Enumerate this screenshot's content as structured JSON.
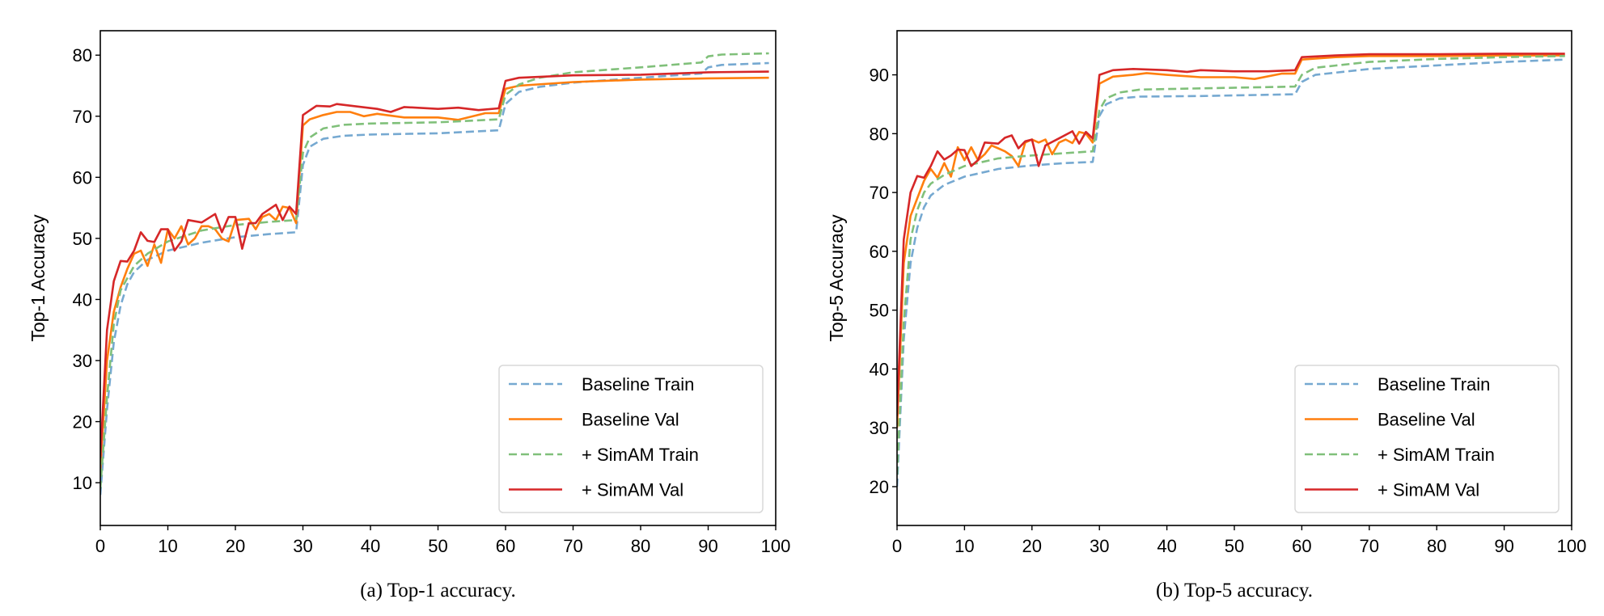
{
  "chart_data": [
    {
      "type": "line",
      "caption": "(a) Top-1 accuracy.",
      "xlabel": "",
      "ylabel": "Top-1 Accuracy",
      "xlim": [
        0,
        100
      ],
      "ylim": [
        3,
        84
      ],
      "xticks": [
        0,
        10,
        20,
        30,
        40,
        50,
        60,
        70,
        80,
        90,
        100
      ],
      "yticks": [
        10,
        20,
        30,
        40,
        50,
        60,
        70,
        80
      ],
      "grid": false,
      "legend_position": "lower-right",
      "series": [
        {
          "name": "Baseline Train",
          "color": "#76a9d1",
          "dashed": true,
          "x": [
            0,
            1,
            2,
            3,
            4,
            5,
            7,
            10,
            15,
            20,
            25,
            29,
            30,
            31,
            33,
            36,
            40,
            50,
            59,
            60,
            62,
            65,
            70,
            80,
            89,
            90,
            92,
            99
          ],
          "y": [
            8,
            22,
            33,
            39,
            42.5,
            44.5,
            46.5,
            48,
            49.3,
            50.2,
            50.7,
            51,
            62,
            65,
            66.3,
            66.8,
            67,
            67.2,
            67.7,
            72,
            74,
            74.8,
            75.5,
            76.3,
            77,
            78,
            78.4,
            78.7
          ]
        },
        {
          "name": "Baseline Val",
          "color": "#ff7f0e",
          "dashed": false,
          "x": [
            0,
            1,
            2,
            3,
            4,
            5,
            6,
            7,
            8,
            9,
            10,
            11,
            12,
            13,
            14,
            15,
            16,
            17,
            18,
            19,
            20,
            22,
            23,
            24,
            25,
            26,
            27,
            28,
            29,
            30,
            31,
            33,
            35,
            37,
            39,
            41,
            45,
            50,
            53,
            57,
            59,
            60,
            62,
            70,
            80,
            90,
            99
          ],
          "y": [
            12,
            30,
            38,
            42,
            45,
            47.5,
            48,
            45.5,
            49,
            46,
            51.5,
            50,
            52,
            49,
            50,
            52,
            52,
            51.5,
            50,
            49.5,
            53,
            53.2,
            51.5,
            53.5,
            54,
            53,
            55.2,
            55,
            52.5,
            68.5,
            69.5,
            70.2,
            70.7,
            70.7,
            70,
            70.4,
            69.8,
            69.8,
            69.4,
            70.5,
            70.5,
            74.5,
            75,
            75.6,
            76,
            76.2,
            76.3
          ]
        },
        {
          "name": "+ SimAM Train",
          "color": "#80c07a",
          "dashed": true,
          "x": [
            0,
            1,
            2,
            3,
            5,
            7,
            10,
            15,
            20,
            25,
            29,
            30,
            31,
            33,
            36,
            40,
            50,
            59,
            60,
            62,
            65,
            70,
            80,
            89,
            90,
            92,
            99
          ],
          "y": [
            9,
            24,
            36,
            41.5,
            45.5,
            47.5,
            49.5,
            51.3,
            52.2,
            52.7,
            53,
            64,
            66.5,
            68,
            68.6,
            68.8,
            69,
            69.5,
            73.5,
            75.2,
            76.3,
            77.2,
            78,
            78.8,
            79.8,
            80.1,
            80.3
          ]
        },
        {
          "name": "+ SimAM Val",
          "color": "#d62728",
          "dashed": false,
          "x": [
            0,
            1,
            2,
            3,
            4,
            5,
            6,
            7,
            8,
            9,
            10,
            11,
            12,
            13,
            15,
            17,
            18,
            19,
            20,
            21,
            22,
            23,
            24,
            26,
            27,
            28,
            29,
            30,
            32,
            34,
            35,
            38,
            41,
            43,
            45,
            50,
            53,
            56,
            59,
            60,
            62,
            70,
            80,
            90,
            99
          ],
          "y": [
            14,
            35,
            43,
            46.3,
            46.2,
            48,
            51,
            49.6,
            49.4,
            51.5,
            51.5,
            48,
            49.5,
            53,
            52.6,
            54,
            51,
            53.5,
            53.5,
            48.3,
            52.5,
            52.5,
            54,
            55.5,
            53,
            55.2,
            54,
            70.2,
            71.7,
            71.6,
            72,
            71.6,
            71.2,
            70.7,
            71.5,
            71.2,
            71.4,
            71,
            71.3,
            75.8,
            76.3,
            76.7,
            76.8,
            77.2,
            77.3
          ]
        }
      ]
    },
    {
      "type": "line",
      "caption": "(b) Top-5 accuracy.",
      "xlabel": "",
      "ylabel": "Top-5 Accuracy",
      "xlim": [
        0,
        100
      ],
      "ylim": [
        13.4,
        97.5
      ],
      "xticks": [
        0,
        10,
        20,
        30,
        40,
        50,
        60,
        70,
        80,
        90,
        100
      ],
      "yticks": [
        20,
        30,
        40,
        50,
        60,
        70,
        80,
        90
      ],
      "grid": false,
      "legend_position": "lower-right",
      "series": [
        {
          "name": "Baseline Train",
          "color": "#76a9d1",
          "dashed": true,
          "x": [
            0,
            1,
            2,
            3,
            4,
            5,
            7,
            10,
            15,
            20,
            25,
            29,
            30,
            31,
            33,
            36,
            45,
            59,
            60,
            62,
            70,
            80,
            90,
            99
          ],
          "y": [
            20,
            45,
            58,
            64,
            67.5,
            69.5,
            71.3,
            72.7,
            74,
            74.6,
            75,
            75.2,
            83,
            85,
            86,
            86.3,
            86.4,
            86.7,
            88.8,
            90,
            91,
            91.6,
            92.2,
            92.6
          ]
        },
        {
          "name": "Baseline Val",
          "color": "#ff7f0e",
          "dashed": false,
          "x": [
            0,
            1,
            2,
            3,
            4,
            5,
            6,
            7,
            8,
            9,
            10,
            11,
            12,
            13,
            14,
            15,
            16,
            17,
            18,
            19,
            20,
            21,
            22,
            23,
            24,
            25,
            26,
            27,
            28,
            29,
            30,
            32,
            35,
            37,
            40,
            45,
            50,
            53,
            57,
            59,
            60,
            65,
            70,
            80,
            90,
            99
          ],
          "y": [
            30,
            58,
            66,
            69,
            72,
            74,
            72.5,
            75,
            72.7,
            77.7,
            75.5,
            77.7,
            75.5,
            76.5,
            78,
            77.5,
            77,
            76.2,
            74.5,
            78.5,
            79,
            78.5,
            79,
            76.5,
            78.5,
            79,
            78.4,
            80.3,
            80,
            78.5,
            88.5,
            89.7,
            90,
            90.3,
            90,
            89.6,
            89.6,
            89.3,
            90.2,
            90.2,
            92.6,
            93,
            93.2,
            93.2,
            93.3,
            93.3
          ]
        },
        {
          "name": "+ SimAM Train",
          "color": "#80c07a",
          "dashed": true,
          "x": [
            0,
            1,
            2,
            3,
            4,
            5,
            7,
            10,
            15,
            20,
            25,
            29,
            30,
            31,
            33,
            36,
            45,
            59,
            60,
            62,
            70,
            80,
            90,
            99
          ],
          "y": [
            22,
            48,
            62,
            67,
            70,
            71.5,
            73,
            74.5,
            75.8,
            76.3,
            76.7,
            77,
            84,
            86,
            87,
            87.5,
            87.7,
            88,
            90,
            91.2,
            92.2,
            92.7,
            93,
            93.2
          ]
        },
        {
          "name": "+ SimAM Val",
          "color": "#d62728",
          "dashed": false,
          "x": [
            0,
            1,
            2,
            3,
            4,
            5,
            6,
            7,
            8,
            9,
            10,
            11,
            12,
            13,
            15,
            16,
            17,
            18,
            19,
            20,
            21,
            22,
            24,
            26,
            27,
            28,
            29,
            30,
            32,
            35,
            40,
            43,
            45,
            50,
            55,
            59,
            60,
            65,
            70,
            80,
            90,
            99
          ],
          "y": [
            32,
            62,
            70,
            72.8,
            72.5,
            74.5,
            77,
            75.6,
            76.3,
            77.3,
            77.2,
            74.5,
            75.5,
            78.5,
            78.3,
            79.3,
            79.7,
            77.5,
            78.7,
            79,
            74.5,
            78,
            79.2,
            80.4,
            78.3,
            80.3,
            79.2,
            90,
            90.8,
            91,
            90.8,
            90.5,
            90.8,
            90.6,
            90.6,
            90.8,
            93,
            93.3,
            93.5,
            93.5,
            93.6,
            93.6
          ]
        }
      ]
    }
  ]
}
